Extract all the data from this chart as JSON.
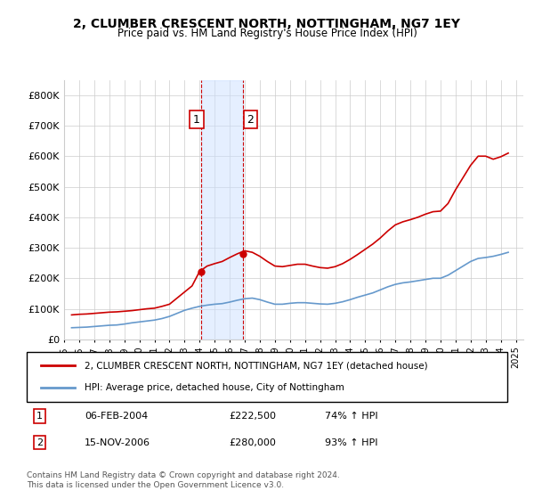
{
  "title": "2, CLUMBER CRESCENT NORTH, NOTTINGHAM, NG7 1EY",
  "subtitle": "Price paid vs. HM Land Registry's House Price Index (HPI)",
  "ylabel": "",
  "xlim_start": 1995.0,
  "xlim_end": 2025.5,
  "ylim": [
    0,
    850000
  ],
  "yticks": [
    0,
    100000,
    200000,
    300000,
    400000,
    500000,
    600000,
    700000,
    800000
  ],
  "ytick_labels": [
    "£0",
    "£100K",
    "£200K",
    "£300K",
    "£400K",
    "£500K",
    "£600K",
    "£700K",
    "£800K"
  ],
  "red_color": "#cc0000",
  "blue_color": "#6699cc",
  "marker1_date": 2004.1,
  "marker1_value": 222500,
  "marker2_date": 2006.88,
  "marker2_value": 280000,
  "marker1_label": "1",
  "marker2_label": "2",
  "shade_x1": 2004.1,
  "shade_x2": 2006.88,
  "legend_line1": "2, CLUMBER CRESCENT NORTH, NOTTINGHAM, NG7 1EY (detached house)",
  "legend_line2": "HPI: Average price, detached house, City of Nottingham",
  "table_row1": "1    06-FEB-2004         £222,500        74% ↑ HPI",
  "table_row2": "2    15-NOV-2006         £280,000        93% ↑ HPI",
  "footnote": "Contains HM Land Registry data © Crown copyright and database right 2024.\nThis data is licensed under the Open Government Licence v3.0.",
  "hpi_data": {
    "years": [
      1995.5,
      1996.0,
      1996.5,
      1997.0,
      1997.5,
      1998.0,
      1998.5,
      1999.0,
      1999.5,
      2000.0,
      2000.5,
      2001.0,
      2001.5,
      2002.0,
      2002.5,
      2003.0,
      2003.5,
      2004.0,
      2004.5,
      2005.0,
      2005.5,
      2006.0,
      2006.5,
      2007.0,
      2007.5,
      2008.0,
      2008.5,
      2009.0,
      2009.5,
      2010.0,
      2010.5,
      2011.0,
      2011.5,
      2012.0,
      2012.5,
      2013.0,
      2013.5,
      2014.0,
      2014.5,
      2015.0,
      2015.5,
      2016.0,
      2016.5,
      2017.0,
      2017.5,
      2018.0,
      2018.5,
      2019.0,
      2019.5,
      2020.0,
      2020.5,
      2021.0,
      2021.5,
      2022.0,
      2022.5,
      2023.0,
      2023.5,
      2024.0,
      2024.5
    ],
    "values": [
      38000,
      39000,
      40000,
      42000,
      44000,
      46000,
      47000,
      50000,
      54000,
      57000,
      60000,
      63000,
      68000,
      75000,
      85000,
      95000,
      102000,
      108000,
      112000,
      115000,
      117000,
      122000,
      128000,
      133000,
      135000,
      130000,
      122000,
      115000,
      115000,
      118000,
      120000,
      120000,
      118000,
      116000,
      115000,
      118000,
      123000,
      130000,
      138000,
      145000,
      152000,
      162000,
      172000,
      180000,
      185000,
      188000,
      192000,
      196000,
      200000,
      200000,
      210000,
      225000,
      240000,
      255000,
      265000,
      268000,
      272000,
      278000,
      285000
    ]
  },
  "red_data": {
    "years": [
      1995.5,
      1996.0,
      1996.5,
      1997.0,
      1997.5,
      1998.0,
      1998.5,
      1999.0,
      1999.5,
      2000.0,
      2000.5,
      2001.0,
      2001.5,
      2002.0,
      2002.5,
      2003.0,
      2003.5,
      2004.0,
      2004.5,
      2005.0,
      2005.5,
      2006.0,
      2006.5,
      2007.0,
      2007.5,
      2008.0,
      2008.5,
      2009.0,
      2009.5,
      2010.0,
      2010.5,
      2011.0,
      2011.5,
      2012.0,
      2012.5,
      2013.0,
      2013.5,
      2014.0,
      2014.5,
      2015.0,
      2015.5,
      2016.0,
      2016.5,
      2017.0,
      2017.5,
      2018.0,
      2018.5,
      2019.0,
      2019.5,
      2020.0,
      2020.5,
      2021.0,
      2021.5,
      2022.0,
      2022.5,
      2023.0,
      2023.5,
      2024.0,
      2024.5
    ],
    "values": [
      80000,
      82000,
      83000,
      85000,
      87000,
      89000,
      90000,
      92000,
      94000,
      97000,
      100000,
      102000,
      108000,
      115000,
      135000,
      155000,
      175000,
      222500,
      240000,
      248000,
      255000,
      268000,
      280000,
      290000,
      285000,
      272000,
      255000,
      240000,
      238000,
      242000,
      246000,
      246000,
      240000,
      235000,
      233000,
      238000,
      248000,
      262000,
      278000,
      295000,
      312000,
      332000,
      355000,
      375000,
      385000,
      392000,
      400000,
      410000,
      418000,
      420000,
      445000,
      490000,
      530000,
      570000,
      600000,
      600000,
      590000,
      598000,
      610000
    ]
  },
  "xticks": [
    1995,
    1996,
    1997,
    1998,
    1999,
    2000,
    2001,
    2002,
    2003,
    2004,
    2005,
    2006,
    2007,
    2008,
    2009,
    2010,
    2011,
    2012,
    2013,
    2014,
    2015,
    2016,
    2017,
    2018,
    2019,
    2020,
    2021,
    2022,
    2023,
    2024,
    2025
  ]
}
